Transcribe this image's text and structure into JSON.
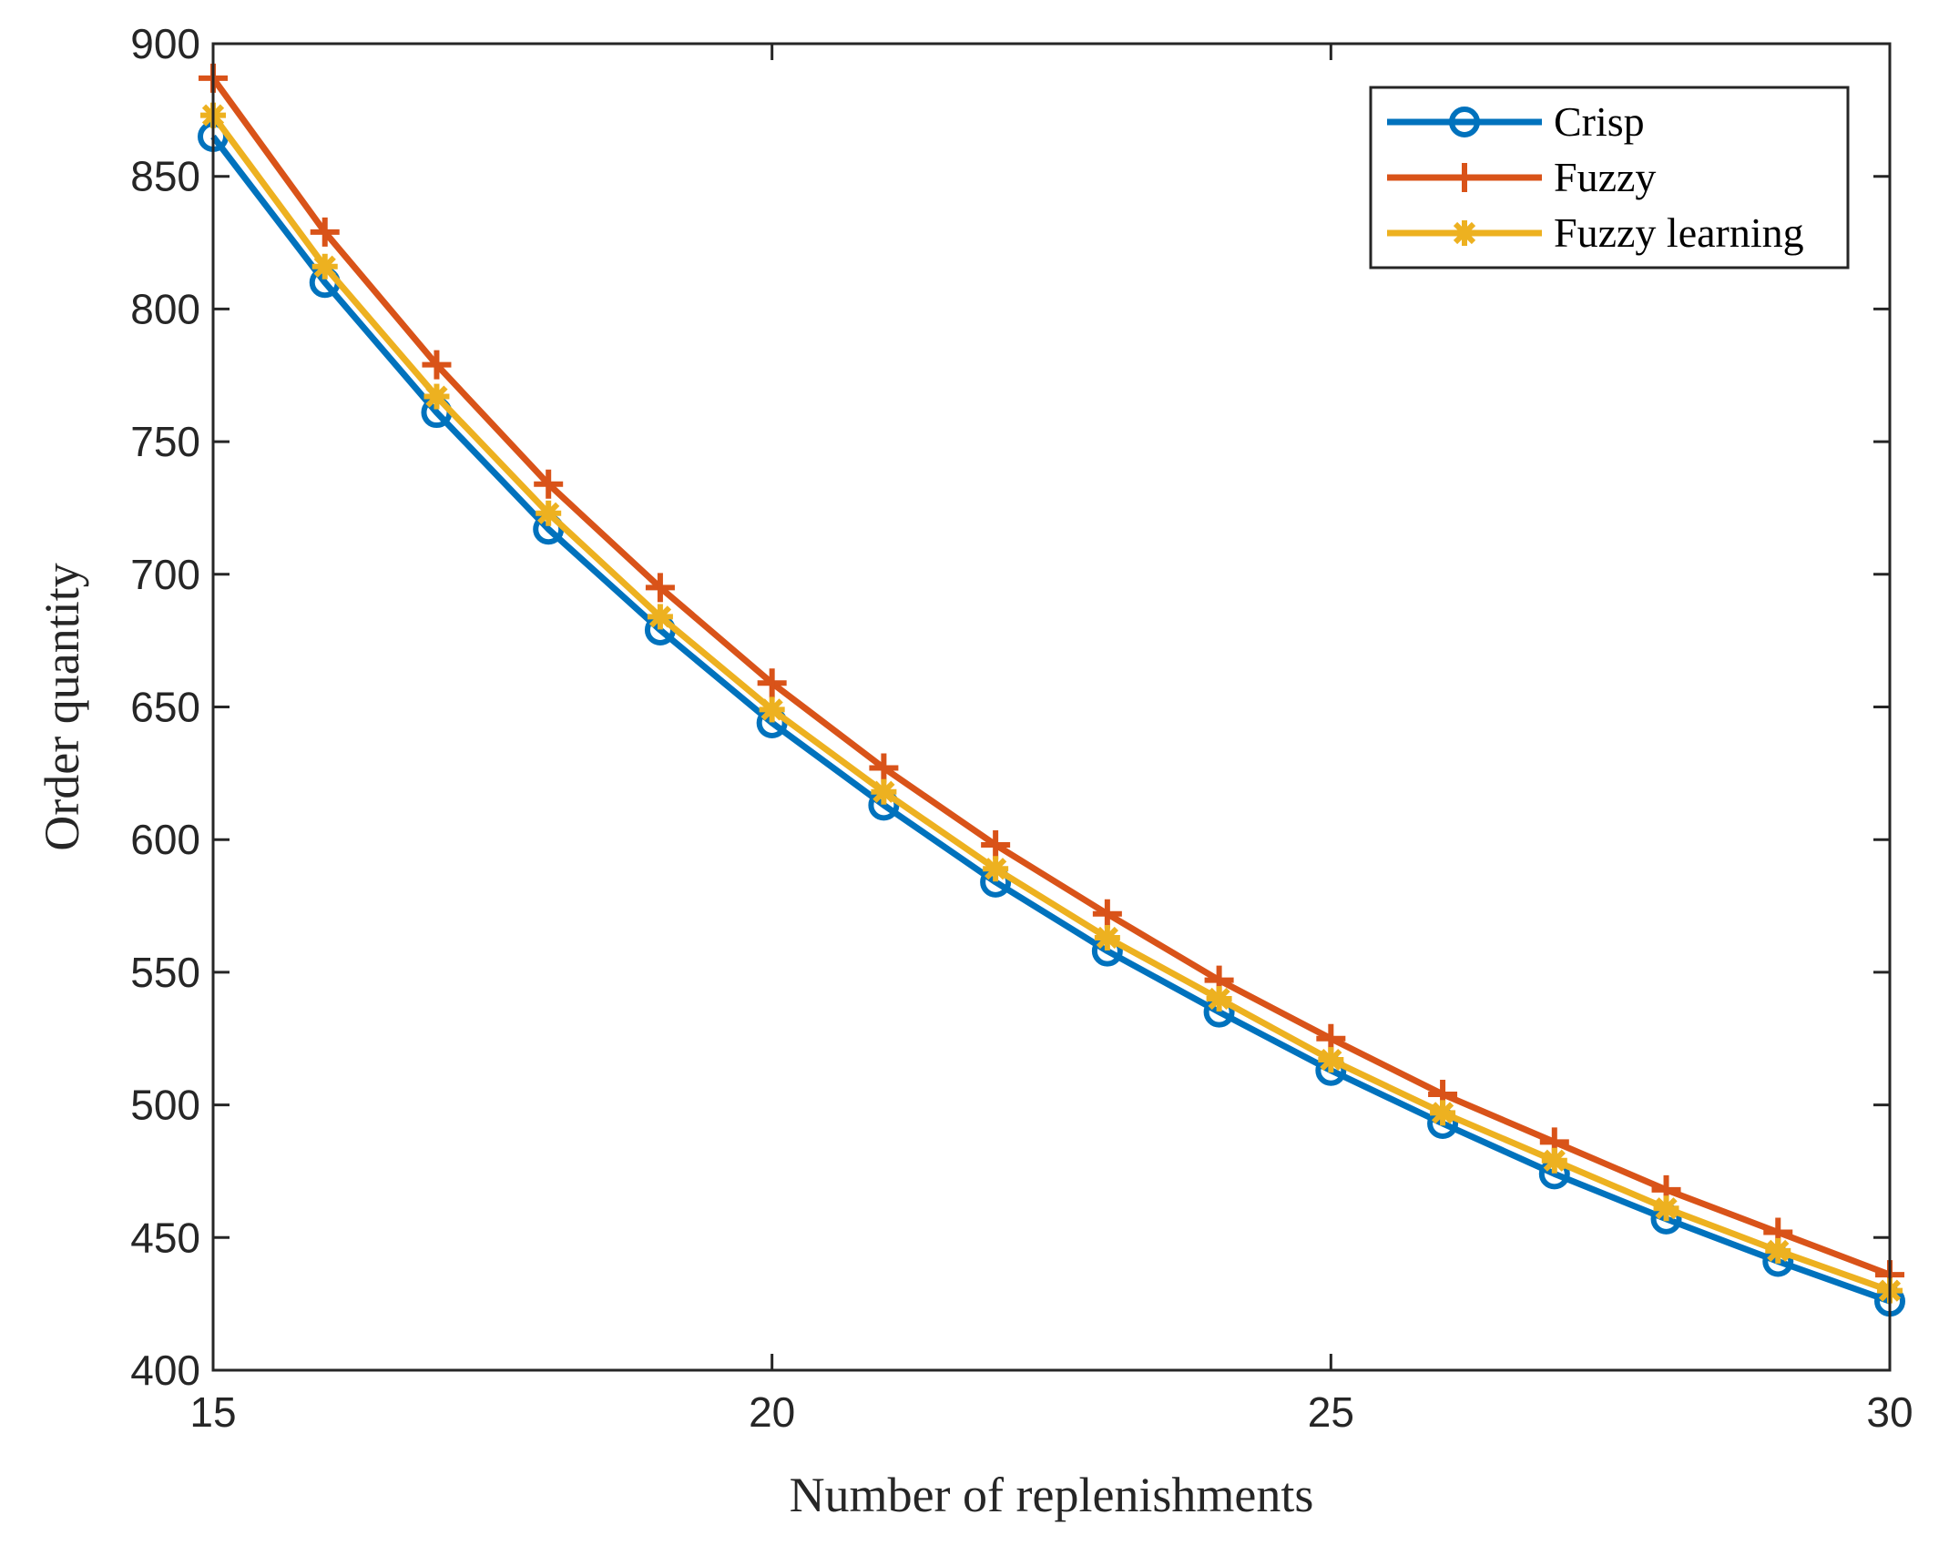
{
  "chart_data": {
    "type": "line",
    "title": "",
    "xlabel": "Number of replenishments",
    "ylabel": "Order quantity",
    "xlim": [
      15,
      30
    ],
    "ylim": [
      400,
      900
    ],
    "xticks": [
      15,
      20,
      25,
      30
    ],
    "yticks": [
      400,
      450,
      500,
      550,
      600,
      650,
      700,
      750,
      800,
      850,
      900
    ],
    "grid": false,
    "legend_position": "top-right",
    "x": [
      15,
      16,
      17,
      18,
      19,
      20,
      21,
      22,
      23,
      24,
      25,
      26,
      27,
      28,
      29,
      30
    ],
    "series": [
      {
        "name": "Crisp",
        "color": "#0072BD",
        "marker": "circle",
        "values": [
          865,
          810,
          761,
          717,
          679,
          644,
          613,
          584,
          558,
          535,
          513,
          493,
          474,
          457,
          441,
          426
        ]
      },
      {
        "name": "Fuzzy",
        "color": "#D95319",
        "marker": "plus",
        "values": [
          887,
          829,
          779,
          734,
          695,
          659,
          627,
          598,
          572,
          547,
          525,
          504,
          486,
          468,
          452,
          436
        ]
      },
      {
        "name": "Fuzzy learning",
        "color": "#EDB120",
        "marker": "asterisk",
        "values": [
          873,
          816,
          767,
          723,
          684,
          649,
          618,
          589,
          563,
          540,
          517,
          497,
          479,
          461,
          445,
          430
        ]
      }
    ]
  }
}
